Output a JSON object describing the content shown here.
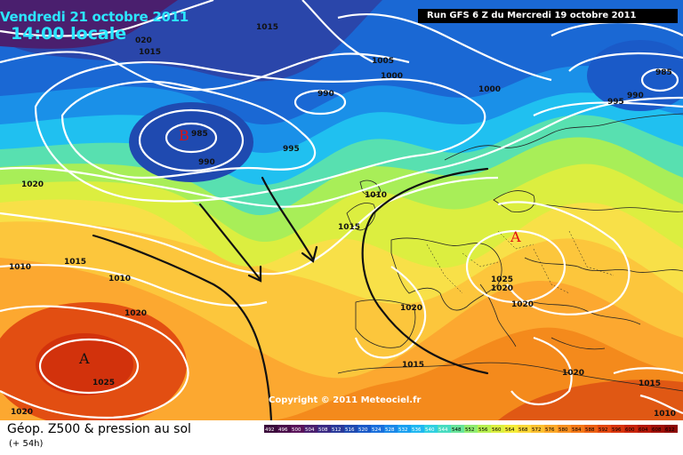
{
  "header": {
    "valid_date": "Vendredi 21 octobre 2011",
    "local_time": "14:00 locale",
    "run_info": "Run GFS 6 Z du Mercredi 19 octobre 2011"
  },
  "footer": {
    "field_label": "Géop. Z500 & pression au sol",
    "lead_time": "(+ 54h)"
  },
  "copyright": "Copyright © 2011 Meteociel.fr",
  "scale": {
    "labels": [
      "492",
      "496",
      "500",
      "504",
      "508",
      "512",
      "516",
      "520",
      "524",
      "528",
      "532",
      "536",
      "540",
      "544",
      "548",
      "552",
      "556",
      "560",
      "564",
      "568",
      "572",
      "576",
      "580",
      "584",
      "588",
      "592",
      "596",
      "600",
      "604",
      "608",
      "612"
    ],
    "colors": [
      "#3a0a3a",
      "#4a0f4a",
      "#5a145a",
      "#4a1f6e",
      "#3a2a84",
      "#2a3a9a",
      "#1f4ab0",
      "#1a5ac8",
      "#1a70dc",
      "#1a88e8",
      "#1aa0f0",
      "#20b8f0",
      "#30d0e0",
      "#48dcc0",
      "#68e49a",
      "#90ec70",
      "#b8f050",
      "#dcf040",
      "#f4ec38",
      "#fcd838",
      "#fcc030",
      "#fca828",
      "#f89020",
      "#f47818",
      "#ec6014",
      "#e44810",
      "#d8340c",
      "#c8240a",
      "#b41808",
      "#a01006",
      "#8c0804"
    ]
  },
  "pressure_labels": [
    "1015",
    "020",
    "1015",
    "1005",
    "1000",
    "990",
    "985",
    "990",
    "995",
    "1000",
    "995",
    "985",
    "990",
    "1020",
    "1010",
    "1015",
    "1010",
    "1015",
    "1010",
    "1020",
    "1025",
    "1020",
    "1020",
    "1025",
    "1020",
    "1015",
    "1020",
    "1015",
    "1020",
    "1010"
  ],
  "centers": [
    {
      "type": "low",
      "letter": "B"
    },
    {
      "type": "high",
      "letter": "A"
    },
    {
      "type": "high",
      "letter": "A"
    }
  ]
}
